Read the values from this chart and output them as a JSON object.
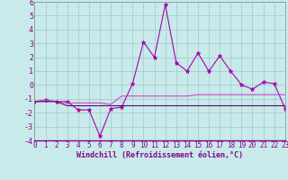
{
  "xlabel": "Windchill (Refroidissement éolien,°C)",
  "x": [
    0,
    1,
    2,
    3,
    4,
    5,
    6,
    7,
    8,
    9,
    10,
    11,
    12,
    13,
    14,
    15,
    16,
    17,
    18,
    19,
    20,
    21,
    22,
    23
  ],
  "line1": [
    -1.2,
    -1.1,
    -1.2,
    -1.2,
    -1.8,
    -1.8,
    -3.7,
    -1.7,
    -1.6,
    0.1,
    3.1,
    2.0,
    5.8,
    1.6,
    1.0,
    2.3,
    1.0,
    2.1,
    1.0,
    0.0,
    -0.3,
    0.2,
    0.1,
    -1.7
  ],
  "line2": [
    -1.2,
    -1.1,
    -1.2,
    -1.3,
    -1.3,
    -1.3,
    -1.3,
    -1.4,
    -0.8,
    -0.8,
    -0.8,
    -0.8,
    -0.8,
    -0.8,
    -0.8,
    -0.7,
    -0.7,
    -0.7,
    -0.7,
    -0.7,
    -0.7,
    -0.7,
    -0.7,
    -0.7
  ],
  "line3": [
    -1.2,
    -1.2,
    -1.2,
    -1.5,
    -1.5,
    -1.5,
    -1.5,
    -1.5,
    -1.5,
    -1.5,
    -1.5,
    -1.5,
    -1.5,
    -1.5,
    -1.5,
    -1.5,
    -1.5,
    -1.5,
    -1.5,
    -1.5,
    -1.5,
    -1.5,
    -1.5,
    -1.5
  ],
  "line_color1": "#aa00aa",
  "line_color2": "#cc44cc",
  "line_color3": "#660066",
  "bg_color": "#c8eaea",
  "grid_color": "#a0c8c8",
  "ylim": [
    -4,
    6
  ],
  "yticks": [
    -4,
    -3,
    -2,
    -1,
    0,
    1,
    2,
    3,
    4,
    5,
    6
  ],
  "xticks": [
    0,
    1,
    2,
    3,
    4,
    5,
    6,
    7,
    8,
    9,
    10,
    11,
    12,
    13,
    14,
    15,
    16,
    17,
    18,
    19,
    20,
    21,
    22,
    23
  ],
  "xlabel_fontsize": 6.0,
  "tick_fontsize": 5.5
}
